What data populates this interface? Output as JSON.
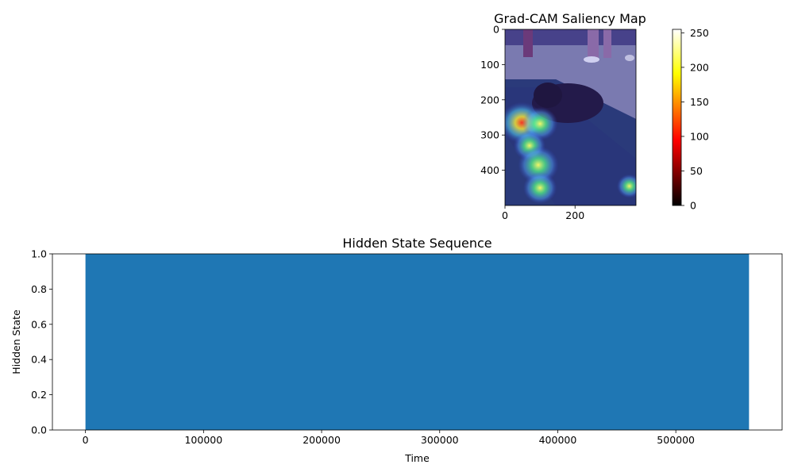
{
  "chart_data": [
    {
      "type": "heatmap",
      "title": "Grad-CAM Saliency Map",
      "x_ticks": [
        0,
        200
      ],
      "y_ticks": [
        0,
        100,
        200,
        300,
        400
      ],
      "xlim": [
        0,
        374
      ],
      "ylim": [
        500,
        0
      ],
      "colorbar": {
        "colormap": "hot",
        "ticks": [
          0,
          50,
          100,
          150,
          200,
          250
        ],
        "range": [
          0,
          255
        ]
      },
      "overlay_colormap": "jet",
      "hotspots": [
        {
          "x": 48,
          "y": 265,
          "intensity": 0.9
        },
        {
          "x": 100,
          "y": 268,
          "intensity": 0.65
        },
        {
          "x": 70,
          "y": 330,
          "intensity": 0.55
        },
        {
          "x": 95,
          "y": 385,
          "intensity": 0.8
        },
        {
          "x": 100,
          "y": 450,
          "intensity": 0.6
        },
        {
          "x": 355,
          "y": 445,
          "intensity": 0.35
        }
      ]
    },
    {
      "type": "area",
      "title": "Hidden State Sequence",
      "xlabel": "Time",
      "ylabel": "Hidden State",
      "x": [
        0,
        562000
      ],
      "values": [
        1.0,
        1.0
      ],
      "xlim": [
        -28000,
        590000
      ],
      "ylim": [
        0,
        1
      ],
      "x_ticks": [
        0,
        100000,
        200000,
        300000,
        400000,
        500000
      ],
      "y_ticks": [
        "0.0",
        "0.2",
        "0.4",
        "0.6",
        "0.8",
        "1.0"
      ],
      "color": "#1f77b4"
    }
  ]
}
